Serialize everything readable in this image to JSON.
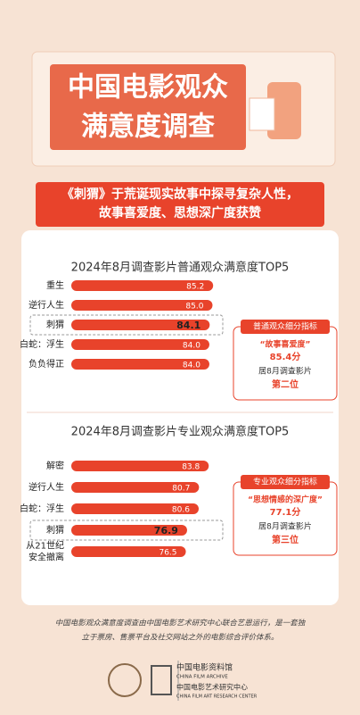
{
  "header": {
    "title_lines": [
      "中国电影观众",
      "满意度调查"
    ]
  },
  "subtitle_lines": [
    "《刺猬》于荒诞现实故事中探寻复杂人性，",
    "故事喜爱度、思想深广度获赞"
  ],
  "chart_data": [
    {
      "type": "bar",
      "title": "2024年8月调查影片普通观众满意度TOP5",
      "categories": [
        "重生",
        "逆行人生",
        "刺猬",
        "白蛇：浮生",
        "负负得正"
      ],
      "values": [
        85.2,
        85.0,
        84.1,
        84.0,
        84.0
      ],
      "value_labels": [
        "85.2",
        "85.0",
        "84.1",
        "84.0",
        "84.0"
      ],
      "color": "#e8432b",
      "highlight": 2,
      "xlim": [
        40,
        86
      ]
    },
    {
      "type": "bar",
      "title": "2024年8月调查影片专业观众满意度TOP5",
      "categories": [
        "解密",
        "逆行人生",
        "白蛇：浮生",
        "刺猬",
        "从21世纪\n安全撤离"
      ],
      "values": [
        83.8,
        80.7,
        80.6,
        76.9,
        76.5
      ],
      "color": "#e8432b",
      "highlight": 3,
      "xlim": [
        40,
        86
      ]
    }
  ],
  "callouts": [
    {
      "heading": "普通观众细分指标",
      "metric": "“故事喜爱度”",
      "score": "85.4分",
      "rank_text": "居8月调查影片",
      "rank": "第二位"
    },
    {
      "heading": "专业观众细分指标",
      "metric": "“思想情感的深广度”",
      "score": "77.1分",
      "rank_text": "居8月调查影片",
      "rank": "第三位"
    }
  ],
  "footer": {
    "note_lines": [
      "中国电影观众满意度调查由中国电影艺术研究中心联合艺恩运行，是一套独",
      "立于票房、售票平台及社交网站之外的电影综合评价体系。"
    ],
    "logo_lines": [
      "中国电影资料馆",
      "CHINA FILM ARCHIVE",
      "中国电影艺术研究中心",
      "CHINA FILM ART RESEARCH CENTER"
    ]
  }
}
